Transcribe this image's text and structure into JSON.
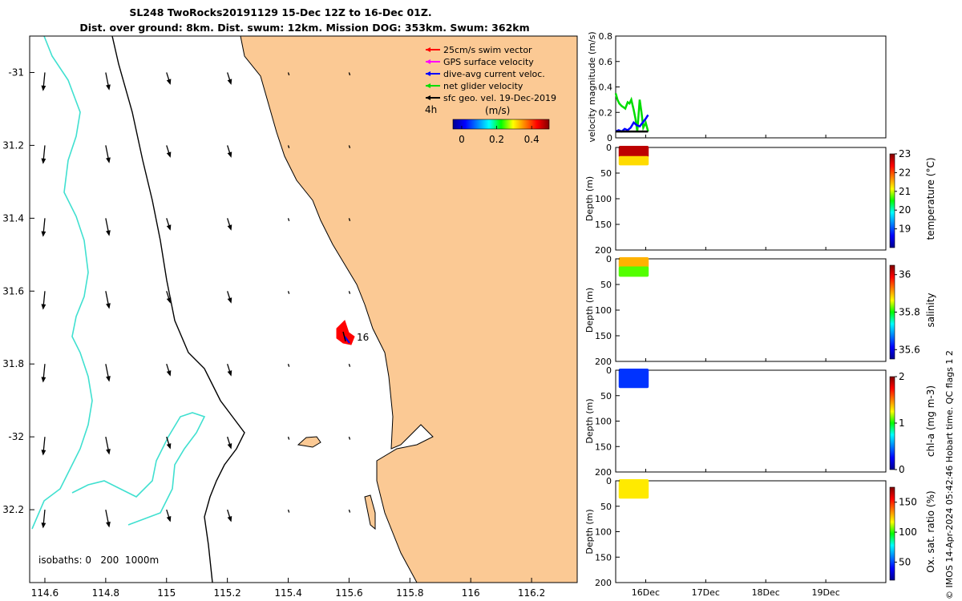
{
  "title": {
    "line1": "SL248 TwoRocks20191129 15-Dec 12Z to 16-Dec 01Z.",
    "line2": "Dist. over ground: 8km. Dist. swum: 12km. Mission DOG: 353km. Swum: 362km"
  },
  "credit": "© IMOS 14-Apr-2024 05:42:46 Hobart time. QC flags 1  2",
  "colors": {
    "land": "#fbc994",
    "isobath_0": "#000000",
    "isobath_200": "#000000",
    "isobath_1000": "#40e0d0",
    "swim": "#ff0000",
    "gps": "#ff00ff",
    "dive_avg": "#0000ff",
    "net": "#00dd00",
    "geo": "#000000"
  },
  "map": {
    "legend": [
      {
        "label": "25cm/s swim vector",
        "color": "#ff0000"
      },
      {
        "label": "GPS surface velocity",
        "color": "#ff00ff"
      },
      {
        "label": "dive-avg current veloc.",
        "color": "#0000ff"
      },
      {
        "label": "net glider velocity",
        "color": "#00dd00"
      },
      {
        "label": "sfc geo. vel. 19-Dec-2019",
        "color": "#000000"
      }
    ],
    "time_step_label": "4h",
    "colorbar": {
      "label": "(m/s)",
      "min": -0.05,
      "max": 0.5,
      "ticks": [
        0,
        0.2,
        0.4
      ],
      "tick_labels": [
        "0",
        "0.2",
        "0.4"
      ]
    },
    "isobath_label": "isobaths: 0   200  1000m",
    "track_label": "16",
    "xaxis": {
      "range": [
        114.55,
        116.35
      ],
      "ticks": [
        114.6,
        114.8,
        115,
        115.2,
        115.4,
        115.6,
        115.8,
        116,
        116.2
      ],
      "tick_labels": [
        "114.6",
        "114.8",
        "115",
        "115.2",
        "115.4",
        "115.6",
        "115.8",
        "116",
        "116.2"
      ]
    },
    "yaxis": {
      "range": [
        -32.4,
        -30.9
      ],
      "ticks": [
        -31,
        -31.2,
        -31.4,
        -31.6,
        -31.8,
        -32,
        -32.2
      ],
      "tick_labels": [
        "-31",
        "31.2",
        "31.4",
        "31.6",
        "31.8",
        "-32",
        "32.2"
      ]
    }
  },
  "chart_data": [
    {
      "type": "line",
      "ylabel": "velocity magnitude (m/s)",
      "ylim": [
        0,
        0.8
      ],
      "yticks": [
        0,
        0.2,
        0.4,
        0.6,
        0.8
      ],
      "ytick_labels": [
        "0",
        "0.2",
        "0.4",
        "0.6",
        "0.8"
      ],
      "xlim": [
        15.5,
        20.0
      ],
      "series": [
        {
          "name": "net glider velocity",
          "color": "#00dd00",
          "x": [
            15.5,
            15.53,
            15.56,
            15.6,
            15.63,
            15.66,
            15.7,
            15.73,
            15.76,
            15.8,
            15.83,
            15.86,
            15.9,
            15.93,
            15.96,
            16.0,
            16.04
          ],
          "y": [
            0.35,
            0.3,
            0.27,
            0.25,
            0.24,
            0.23,
            0.28,
            0.27,
            0.3,
            0.22,
            0.15,
            0.05,
            0.3,
            0.2,
            0.08,
            0.12,
            0.05
          ]
        },
        {
          "name": "dive-avg current veloc.",
          "color": "#0000ff",
          "x": [
            15.5,
            15.55,
            15.6,
            15.65,
            15.7,
            15.75,
            15.8,
            15.85,
            15.9,
            15.95,
            16.0,
            16.04
          ],
          "y": [
            0.05,
            0.06,
            0.05,
            0.07,
            0.06,
            0.08,
            0.12,
            0.1,
            0.09,
            0.12,
            0.15,
            0.18
          ]
        },
        {
          "name": "sfc geo. vel. 19-Dec-2019",
          "color": "#000000",
          "x": [
            15.5,
            15.7,
            15.9,
            16.04
          ],
          "y": [
            0.05,
            0.05,
            0.05,
            0.05
          ]
        }
      ]
    },
    {
      "type": "heatmap",
      "variable": "temperature",
      "ylabel": "Depth (m)",
      "cbar_label": "temperature (°C)",
      "clim": [
        18,
        23
      ],
      "cticks": [
        19,
        20,
        21,
        22,
        23
      ],
      "cticks_labels": [
        "19",
        "20",
        "21",
        "22",
        "23"
      ],
      "ylim": [
        0,
        200
      ],
      "yticks": [
        0,
        50,
        100,
        150,
        200
      ],
      "ytick_labels": [
        "0",
        "50",
        "100",
        "150",
        "200"
      ],
      "xlim": [
        15.5,
        20.0
      ],
      "x_range": [
        15.55,
        16.05
      ],
      "depth_layers": [
        [
          0,
          20,
          22.7
        ],
        [
          20,
          35,
          21.3
        ]
      ]
    },
    {
      "type": "heatmap",
      "variable": "salinity",
      "ylabel": "Depth (m)",
      "cbar_label": "salinity",
      "clim": [
        35.55,
        36.05
      ],
      "cticks": [
        35.6,
        35.8,
        36
      ],
      "cticks_labels": [
        "35.6",
        "35.8",
        "36"
      ],
      "ylim": [
        0,
        200
      ],
      "yticks": [
        0,
        50,
        100,
        150,
        200
      ],
      "ytick_labels": [
        "0",
        "50",
        "100",
        "150",
        "200"
      ],
      "xlim": [
        15.5,
        20.0
      ],
      "x_range": [
        15.55,
        16.05
      ],
      "depth_layers": [
        [
          0,
          18,
          35.9
        ],
        [
          18,
          35,
          35.82
        ]
      ]
    },
    {
      "type": "heatmap",
      "variable": "chl-a",
      "ylabel": "Depth (m)",
      "cbar_label": "chl-a (mg m-3)",
      "clim": [
        0,
        2
      ],
      "cticks": [
        0,
        1,
        2
      ],
      "cticks_labels": [
        "0",
        "1",
        "2"
      ],
      "ylim": [
        0,
        200
      ],
      "yticks": [
        0,
        50,
        100,
        150,
        200
      ],
      "ytick_labels": [
        "0",
        "50",
        "100",
        "150",
        "200"
      ],
      "xlim": [
        15.5,
        20.0
      ],
      "x_range": [
        15.55,
        16.05
      ],
      "depth_layers": [
        [
          0,
          35,
          0.35
        ]
      ]
    },
    {
      "type": "heatmap",
      "variable": "ox-sat",
      "ylabel": "Depth (m)",
      "cbar_label": "Ox. sat. ratio (%)",
      "clim": [
        20,
        175
      ],
      "cticks": [
        50,
        100,
        150
      ],
      "cticks_labels": [
        "50",
        "100",
        "150"
      ],
      "ylim": [
        0,
        200
      ],
      "yticks": [
        0,
        50,
        100,
        150,
        200
      ],
      "ytick_labels": [
        "0",
        "50",
        "100",
        "150",
        "200"
      ],
      "xlim": [
        15.5,
        20.0
      ],
      "x_range": [
        15.55,
        16.05
      ],
      "depth_layers": [
        [
          0,
          35,
          120
        ]
      ]
    }
  ],
  "time_axis": {
    "ticks": [
      16,
      17,
      18,
      19
    ],
    "tick_labels": [
      "16Dec",
      "17Dec",
      "18Dec",
      "19Dec"
    ]
  }
}
